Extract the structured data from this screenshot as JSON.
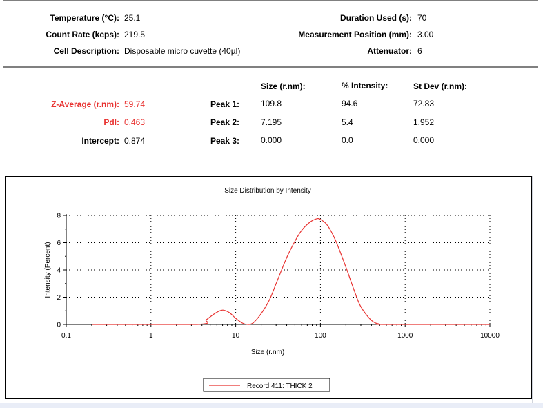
{
  "measurement": {
    "temperature": {
      "label": "Temperature (°C):",
      "value": "25.1"
    },
    "count_rate": {
      "label": "Count Rate (kcps):",
      "value": "219.5"
    },
    "cell_description": {
      "label": "Cell Description:",
      "value": "Disposable micro cuvette (40µl)"
    },
    "duration": {
      "label": "Duration Used (s):",
      "value": "70"
    },
    "position": {
      "label": "Measurement Position (mm):",
      "value": "3.00"
    },
    "attenuator": {
      "label": "Attenuator:",
      "value": "6"
    }
  },
  "results": {
    "z_average": {
      "label": "Z-Average (r.nm):",
      "value": "59.74"
    },
    "pdi": {
      "label": "PdI:",
      "value": "0.463"
    },
    "intercept": {
      "label": "Intercept:",
      "value": "0.874"
    },
    "peak_headers": [
      "Size (r.nm):",
      "% Intensity:",
      "St Dev (r.nm):"
    ],
    "peaks": [
      {
        "label": "Peak 1:",
        "size": "109.8",
        "intensity": "94.6",
        "stdev": "72.83"
      },
      {
        "label": "Peak 2:",
        "size": "7.195",
        "intensity": "5.4",
        "stdev": "1.952"
      },
      {
        "label": "Peak 3:",
        "size": "0.000",
        "intensity": "0.0",
        "stdev": "0.000"
      }
    ]
  },
  "colors": {
    "highlight": "#e8312f",
    "series": "#e8312f"
  },
  "chart_data": {
    "type": "line",
    "title": "Size Distribution by Intensity",
    "xlabel": "Size (r.nm)",
    "ylabel": "Intensity (Percent)",
    "x_scale": "log",
    "xlim": [
      0.1,
      10000
    ],
    "ylim": [
      0,
      8
    ],
    "x_ticks": [
      "0.1",
      "1",
      "10",
      "100",
      "1000",
      "10000"
    ],
    "y_ticks": [
      "0",
      "2",
      "4",
      "6",
      "8"
    ],
    "grid": true,
    "legend_position": "bottom-center",
    "series": [
      {
        "name": "Record 411: THICK 2",
        "x": [
          0.2,
          3.5,
          4.5,
          5.5,
          6.5,
          7.2,
          8.5,
          10,
          12,
          14,
          16,
          20,
          25,
          30,
          40,
          50,
          60,
          75,
          90,
          100,
          120,
          150,
          200,
          250,
          300,
          400,
          500,
          600,
          10000
        ],
        "y": [
          0,
          0,
          0.35,
          0.75,
          1.0,
          1.05,
          0.85,
          0.45,
          0.1,
          0,
          0.1,
          0.8,
          1.8,
          3.0,
          4.9,
          6.1,
          6.9,
          7.5,
          7.75,
          7.7,
          7.3,
          6.2,
          4.2,
          2.5,
          1.3,
          0.3,
          0.02,
          0,
          0
        ]
      }
    ]
  }
}
